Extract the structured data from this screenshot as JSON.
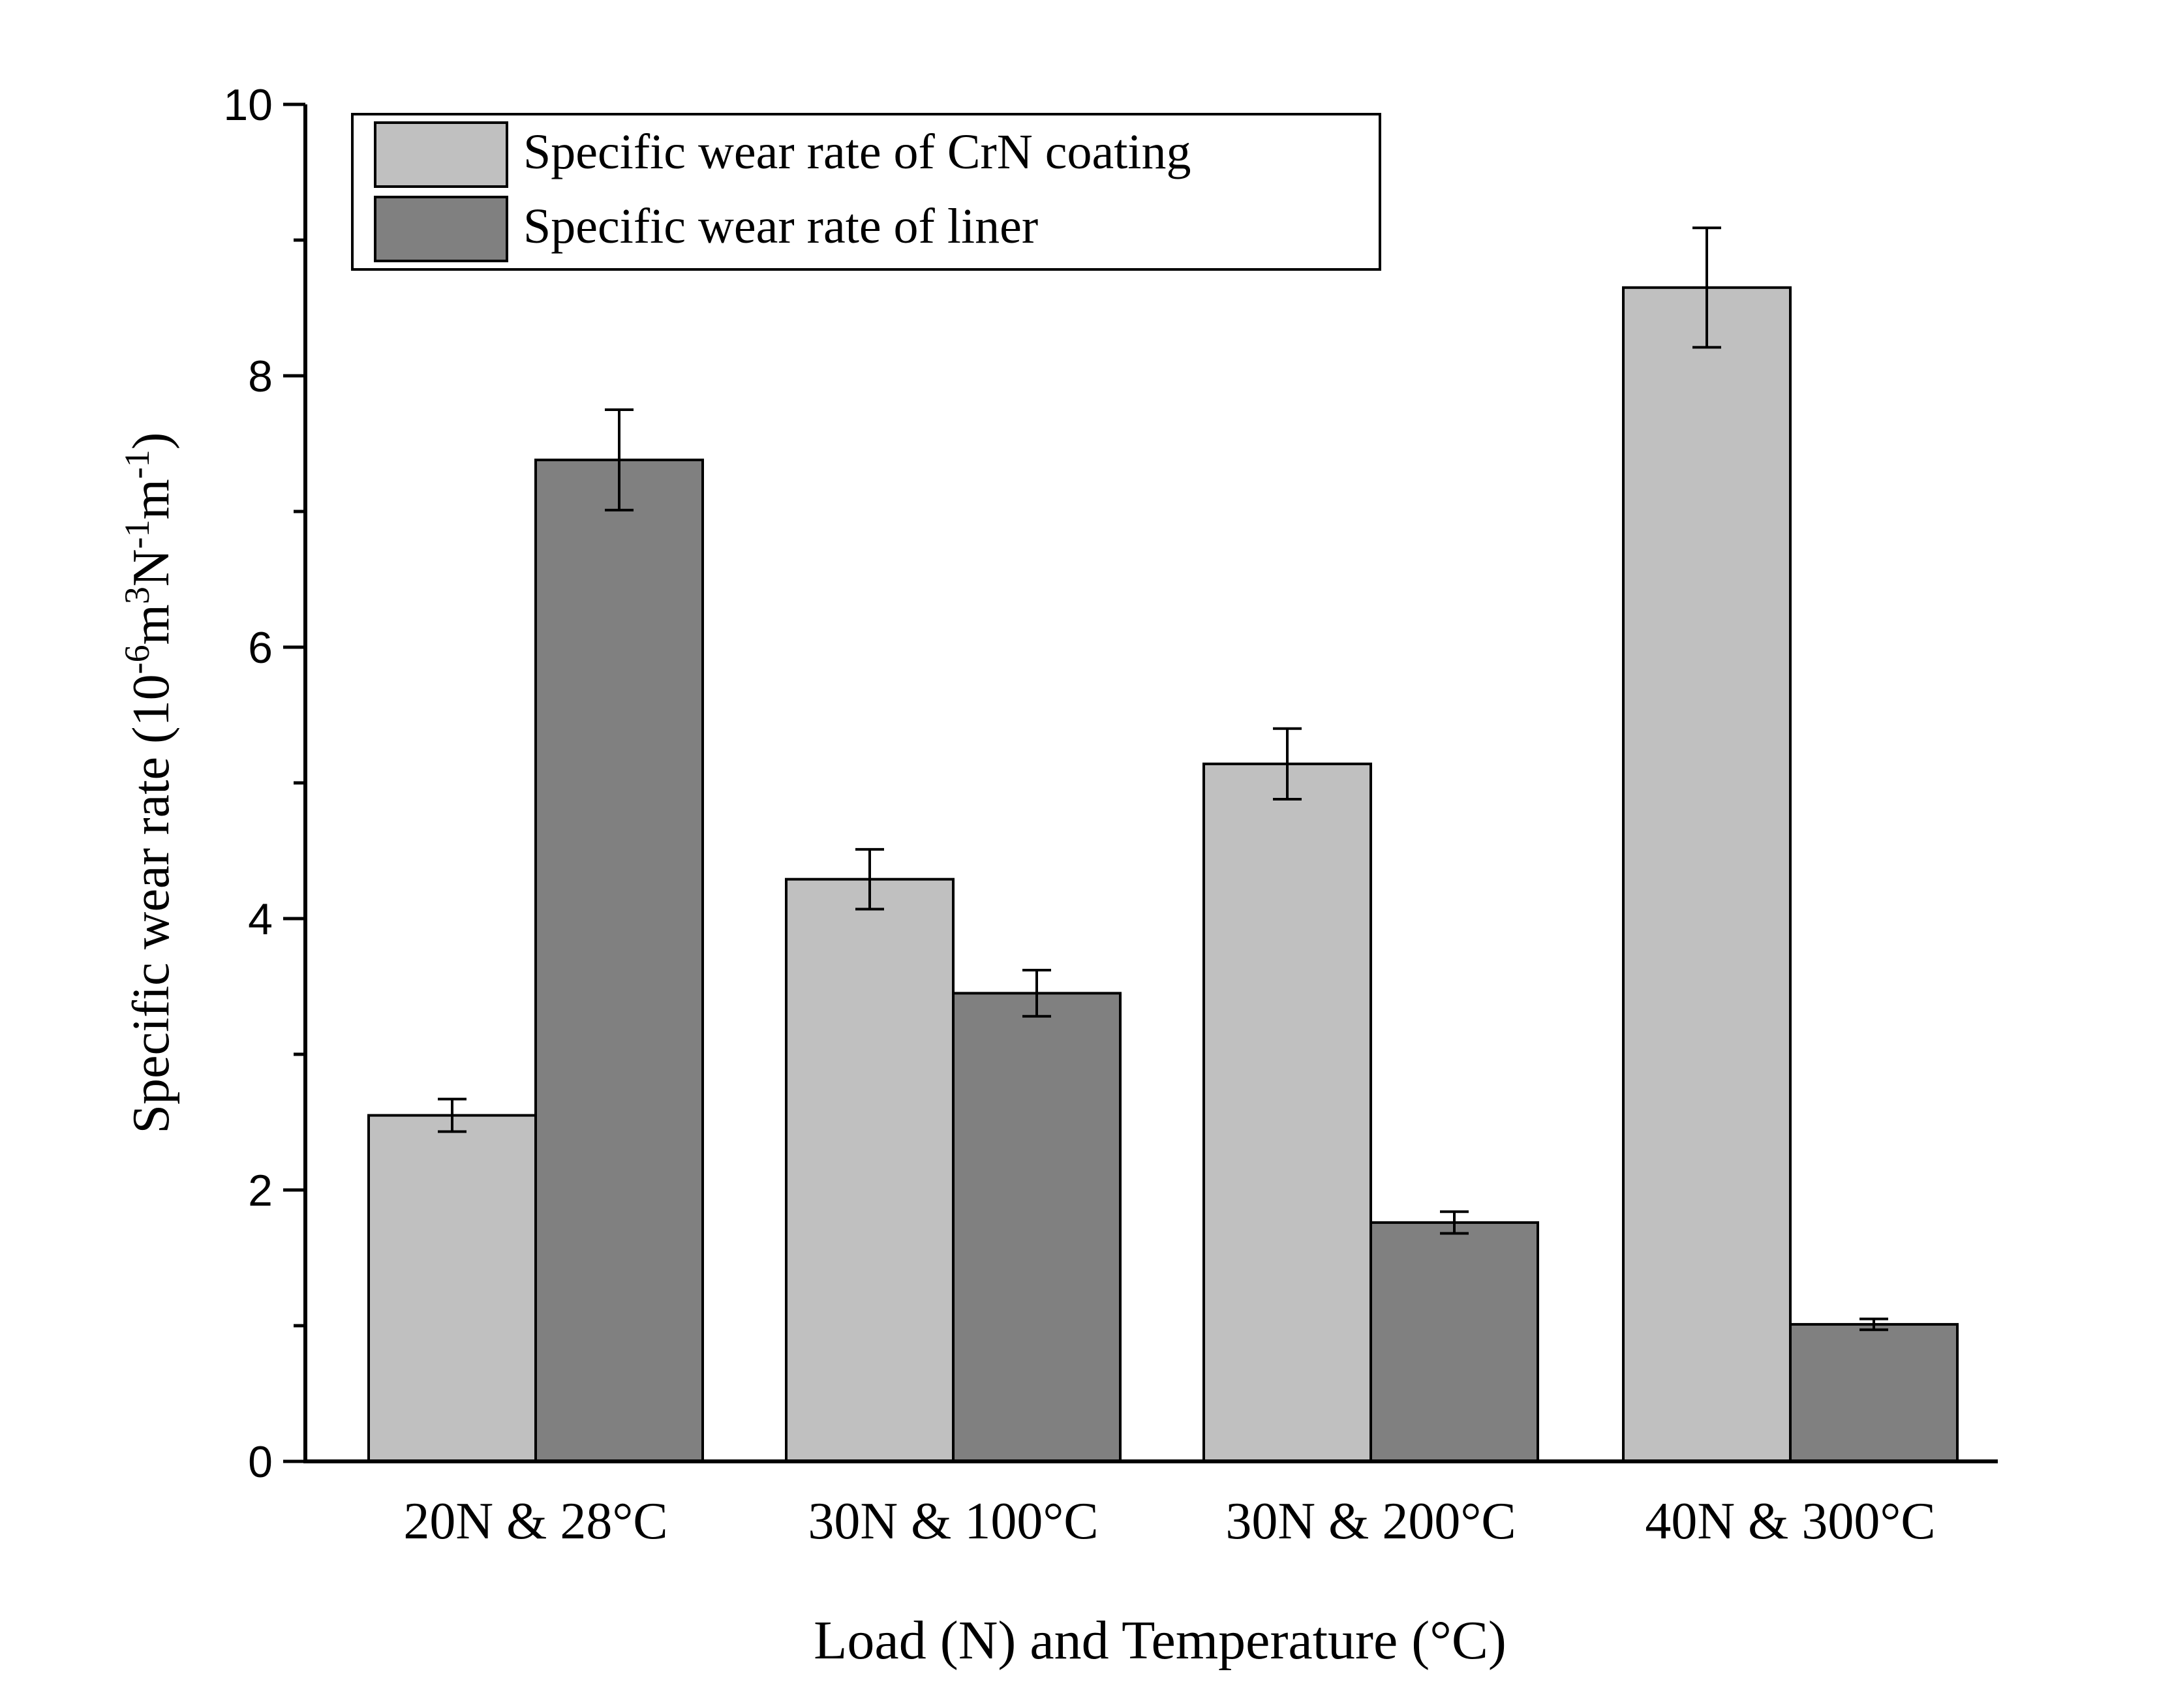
{
  "chart_data": {
    "type": "bar",
    "title": "",
    "xlabel": "Load (N) and Temperature (°C)",
    "ylabel_parts": {
      "prefix": "Specific wear rate (10",
      "exp1": "-6",
      "mid1": "m",
      "exp2": "3",
      "mid2": "N",
      "exp3": "-1",
      "mid3": "m",
      "exp4": "-1",
      "suffix": ")"
    },
    "categories": [
      "20N & 28°C",
      "30N & 100°C",
      "30N & 200°C",
      "40N & 300°C"
    ],
    "series": [
      {
        "name": "Specific wear rate of CrN coating",
        "color": "#c0c0c0",
        "values": [
          2.55,
          4.29,
          5.14,
          8.65
        ],
        "errors": [
          0.12,
          0.22,
          0.26,
          0.44
        ]
      },
      {
        "name": "Specific wear rate of liner",
        "color": "#808080",
        "values": [
          7.38,
          3.45,
          1.76,
          1.01
        ],
        "errors": [
          0.37,
          0.17,
          0.08,
          0.04
        ]
      }
    ],
    "ylim": [
      0,
      10
    ],
    "yticks": [
      "0",
      "2",
      "4",
      "6",
      "8",
      "10"
    ],
    "legend_position": "top-left",
    "grid": false
  }
}
